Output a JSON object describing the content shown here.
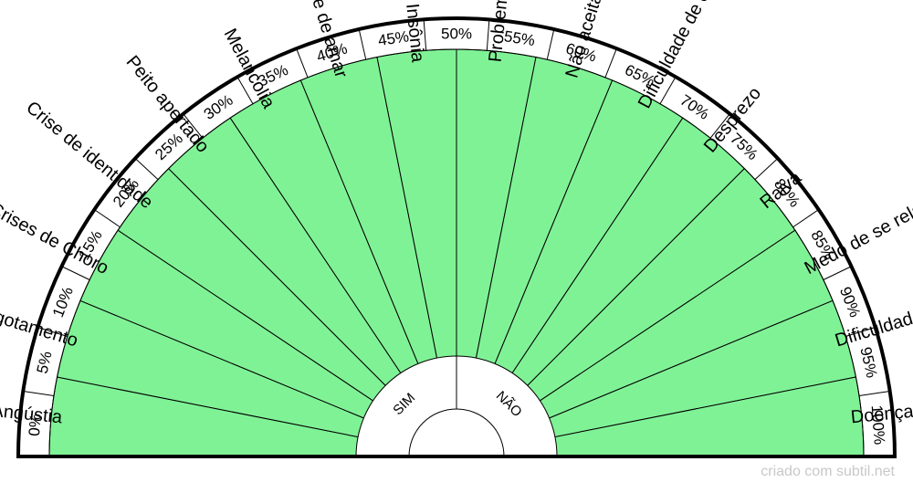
{
  "colors": {
    "sector_fill": "#80F296",
    "line": "#000000",
    "outer_band": "#ffffff",
    "center_fill": "#ffffff",
    "footer_text": "#c8c8c8"
  },
  "scale_labels": [
    "0%",
    "5%",
    "10%",
    "15%",
    "20%",
    "25%",
    "30%",
    "35%",
    "40%",
    "45%",
    "50%",
    "55%",
    "60%",
    "65%",
    "70%",
    "75%",
    "80%",
    "85%",
    "90%",
    "95%",
    "100%"
  ],
  "sectors": [
    "Depressão ou Angústia",
    "Esgotamento",
    "Crises de Choro",
    "Crise de identidade",
    "Peito apertado",
    "Melancolia",
    "Incapacidade de amar",
    "Insônia",
    "Problemas pulmonares",
    "Não aceitar ajuda",
    "Dificuldade de chorar",
    "Desprezo",
    "Raiva",
    "Medo de se relacionar",
    "Dificuldade de respirar",
    "Doenças"
  ],
  "center": {
    "left_label": "SIM",
    "right_label": "NÃO"
  },
  "footer": "criado com subtil.net"
}
